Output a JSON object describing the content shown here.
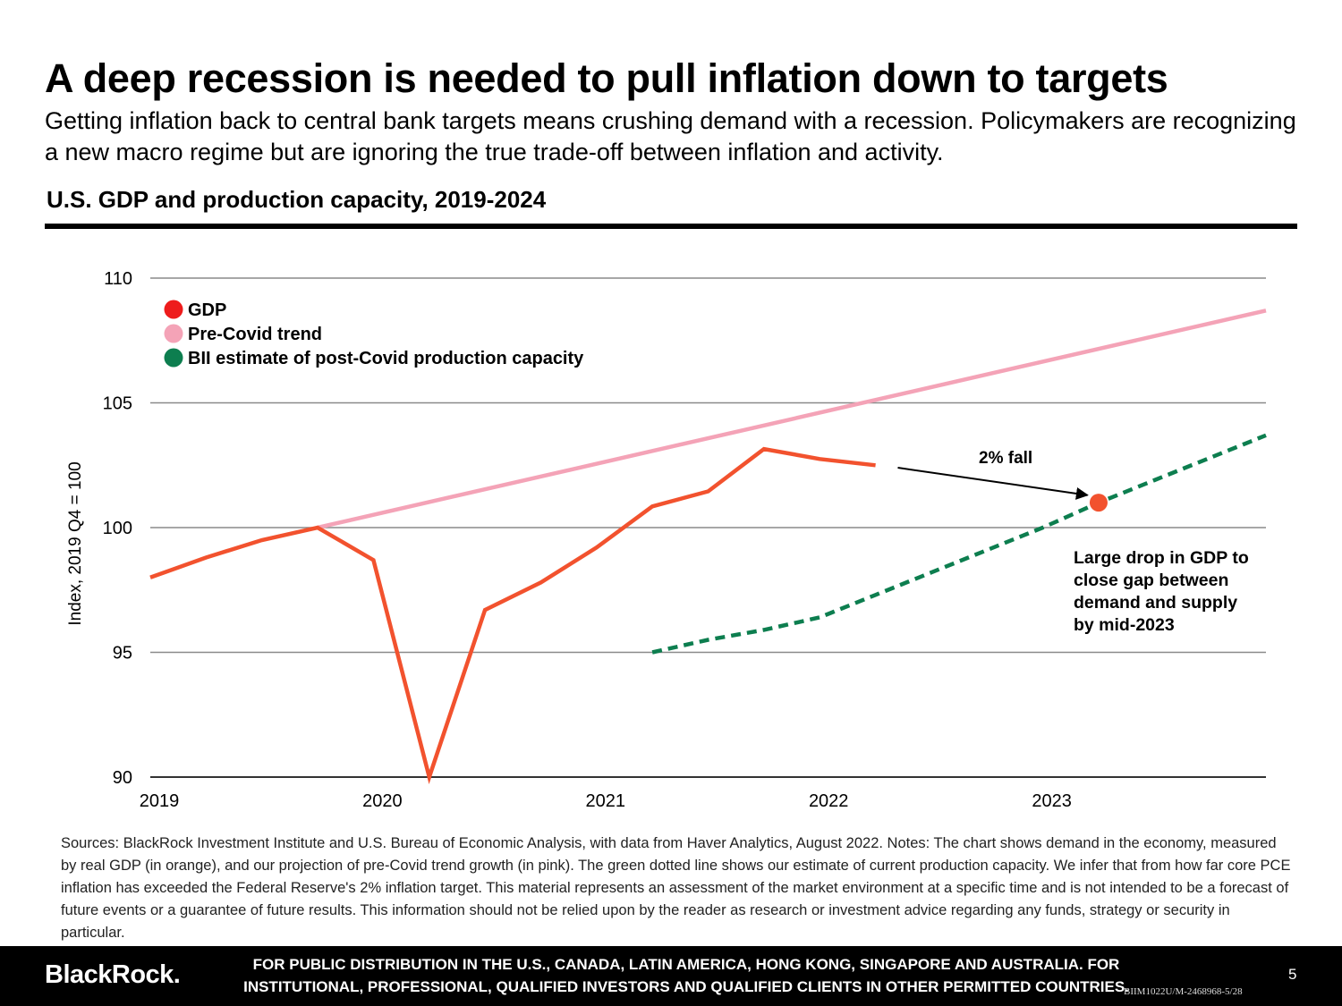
{
  "header": {
    "title": "A deep recession is needed to pull inflation down to targets",
    "subtitle": "Getting inflation back to central bank targets means crushing demand with a recession. Policymakers are recognizing a new macro regime but are ignoring the true trade-off between inflation and activity."
  },
  "chart_data": {
    "type": "line",
    "title": "U.S. GDP and production capacity, 2019-2024",
    "xlabel": "",
    "ylabel": "Index, 2019 Q4 = 100",
    "xlim": [
      2019.0,
      2024.0
    ],
    "ylim": [
      90,
      110
    ],
    "x_ticks": [
      "2019",
      "2020",
      "2021",
      "2022",
      "2023"
    ],
    "y_ticks": [
      90,
      95,
      100,
      105,
      110
    ],
    "grid": "horizontal",
    "legend_position": "top-left",
    "series": [
      {
        "name": "GDP",
        "color": "#f2522e",
        "style": "solid",
        "points": [
          [
            2019.0,
            98.0
          ],
          [
            2019.25,
            98.8
          ],
          [
            2019.5,
            99.5
          ],
          [
            2019.75,
            100.0
          ],
          [
            2020.0,
            98.7
          ],
          [
            2020.25,
            90.0
          ],
          [
            2020.5,
            96.7
          ],
          [
            2020.75,
            97.8
          ],
          [
            2021.0,
            99.2
          ],
          [
            2021.25,
            100.85
          ],
          [
            2021.5,
            101.45
          ],
          [
            2021.75,
            103.15
          ],
          [
            2022.0,
            102.75
          ],
          [
            2022.25,
            102.5
          ]
        ]
      },
      {
        "name": "Pre-Covid trend",
        "color": "#f4a3b7",
        "style": "solid",
        "points": [
          [
            2019.75,
            100.0
          ],
          [
            2024.0,
            108.7
          ]
        ]
      },
      {
        "name": "BII estimate of post-Covid production capacity",
        "color": "#0d7e4f",
        "style": "dashed",
        "points": [
          [
            2021.25,
            95.0
          ],
          [
            2021.5,
            95.5
          ],
          [
            2021.75,
            95.9
          ],
          [
            2022.0,
            96.4
          ],
          [
            2022.25,
            97.3
          ],
          [
            2022.5,
            98.2
          ],
          [
            2022.75,
            99.1
          ],
          [
            2023.0,
            100.0
          ],
          [
            2023.25,
            101.0
          ],
          [
            2023.5,
            101.9
          ],
          [
            2023.75,
            102.8
          ],
          [
            2024.0,
            103.7
          ]
        ]
      }
    ],
    "marker": {
      "x": 2023.25,
      "y": 101.0,
      "color": "#f2522e"
    },
    "annotations": {
      "arrow_label": "2% fall",
      "arrow_from": [
        2022.35,
        102.4
      ],
      "arrow_to": [
        2023.2,
        101.3
      ],
      "note_lines": [
        "Large drop in GDP to",
        "close gap between",
        "demand and supply",
        "by mid-2023"
      ]
    }
  },
  "notes": "Sources: BlackRock Investment Institute and U.S. Bureau of Economic Analysis, with data from Haver Analytics, August 2022. Notes: The chart shows demand in the economy, measured by real GDP (in orange), and our projection of pre-Covid trend growth (in pink). The green dotted line shows our estimate of current production capacity. We infer that from how far core PCE inflation has exceeded the Federal Reserve's 2% inflation target. This material represents an assessment of the market environment at a specific time and is not intended to be a forecast of future events or a guarantee of future results. This information should not be relied upon by the reader as research or investment advice regarding any funds, strategy or security in particular.",
  "footer": {
    "brand": "BlackRock.",
    "disclaimer": "FOR PUBLIC DISTRIBUTION IN THE U.S., CANADA, LATIN AMERICA, HONG KONG, SINGAPORE AND AUSTRALIA. FOR INSTITUTIONAL,  PROFESSIONAL, QUALIFIED INVESTORS AND QUALIFIED CLIENTS IN OTHER PERMITTED COUNTRIES.",
    "page_number": "5",
    "doc_id": "BIIM1022U/M-2468968-5/28"
  }
}
